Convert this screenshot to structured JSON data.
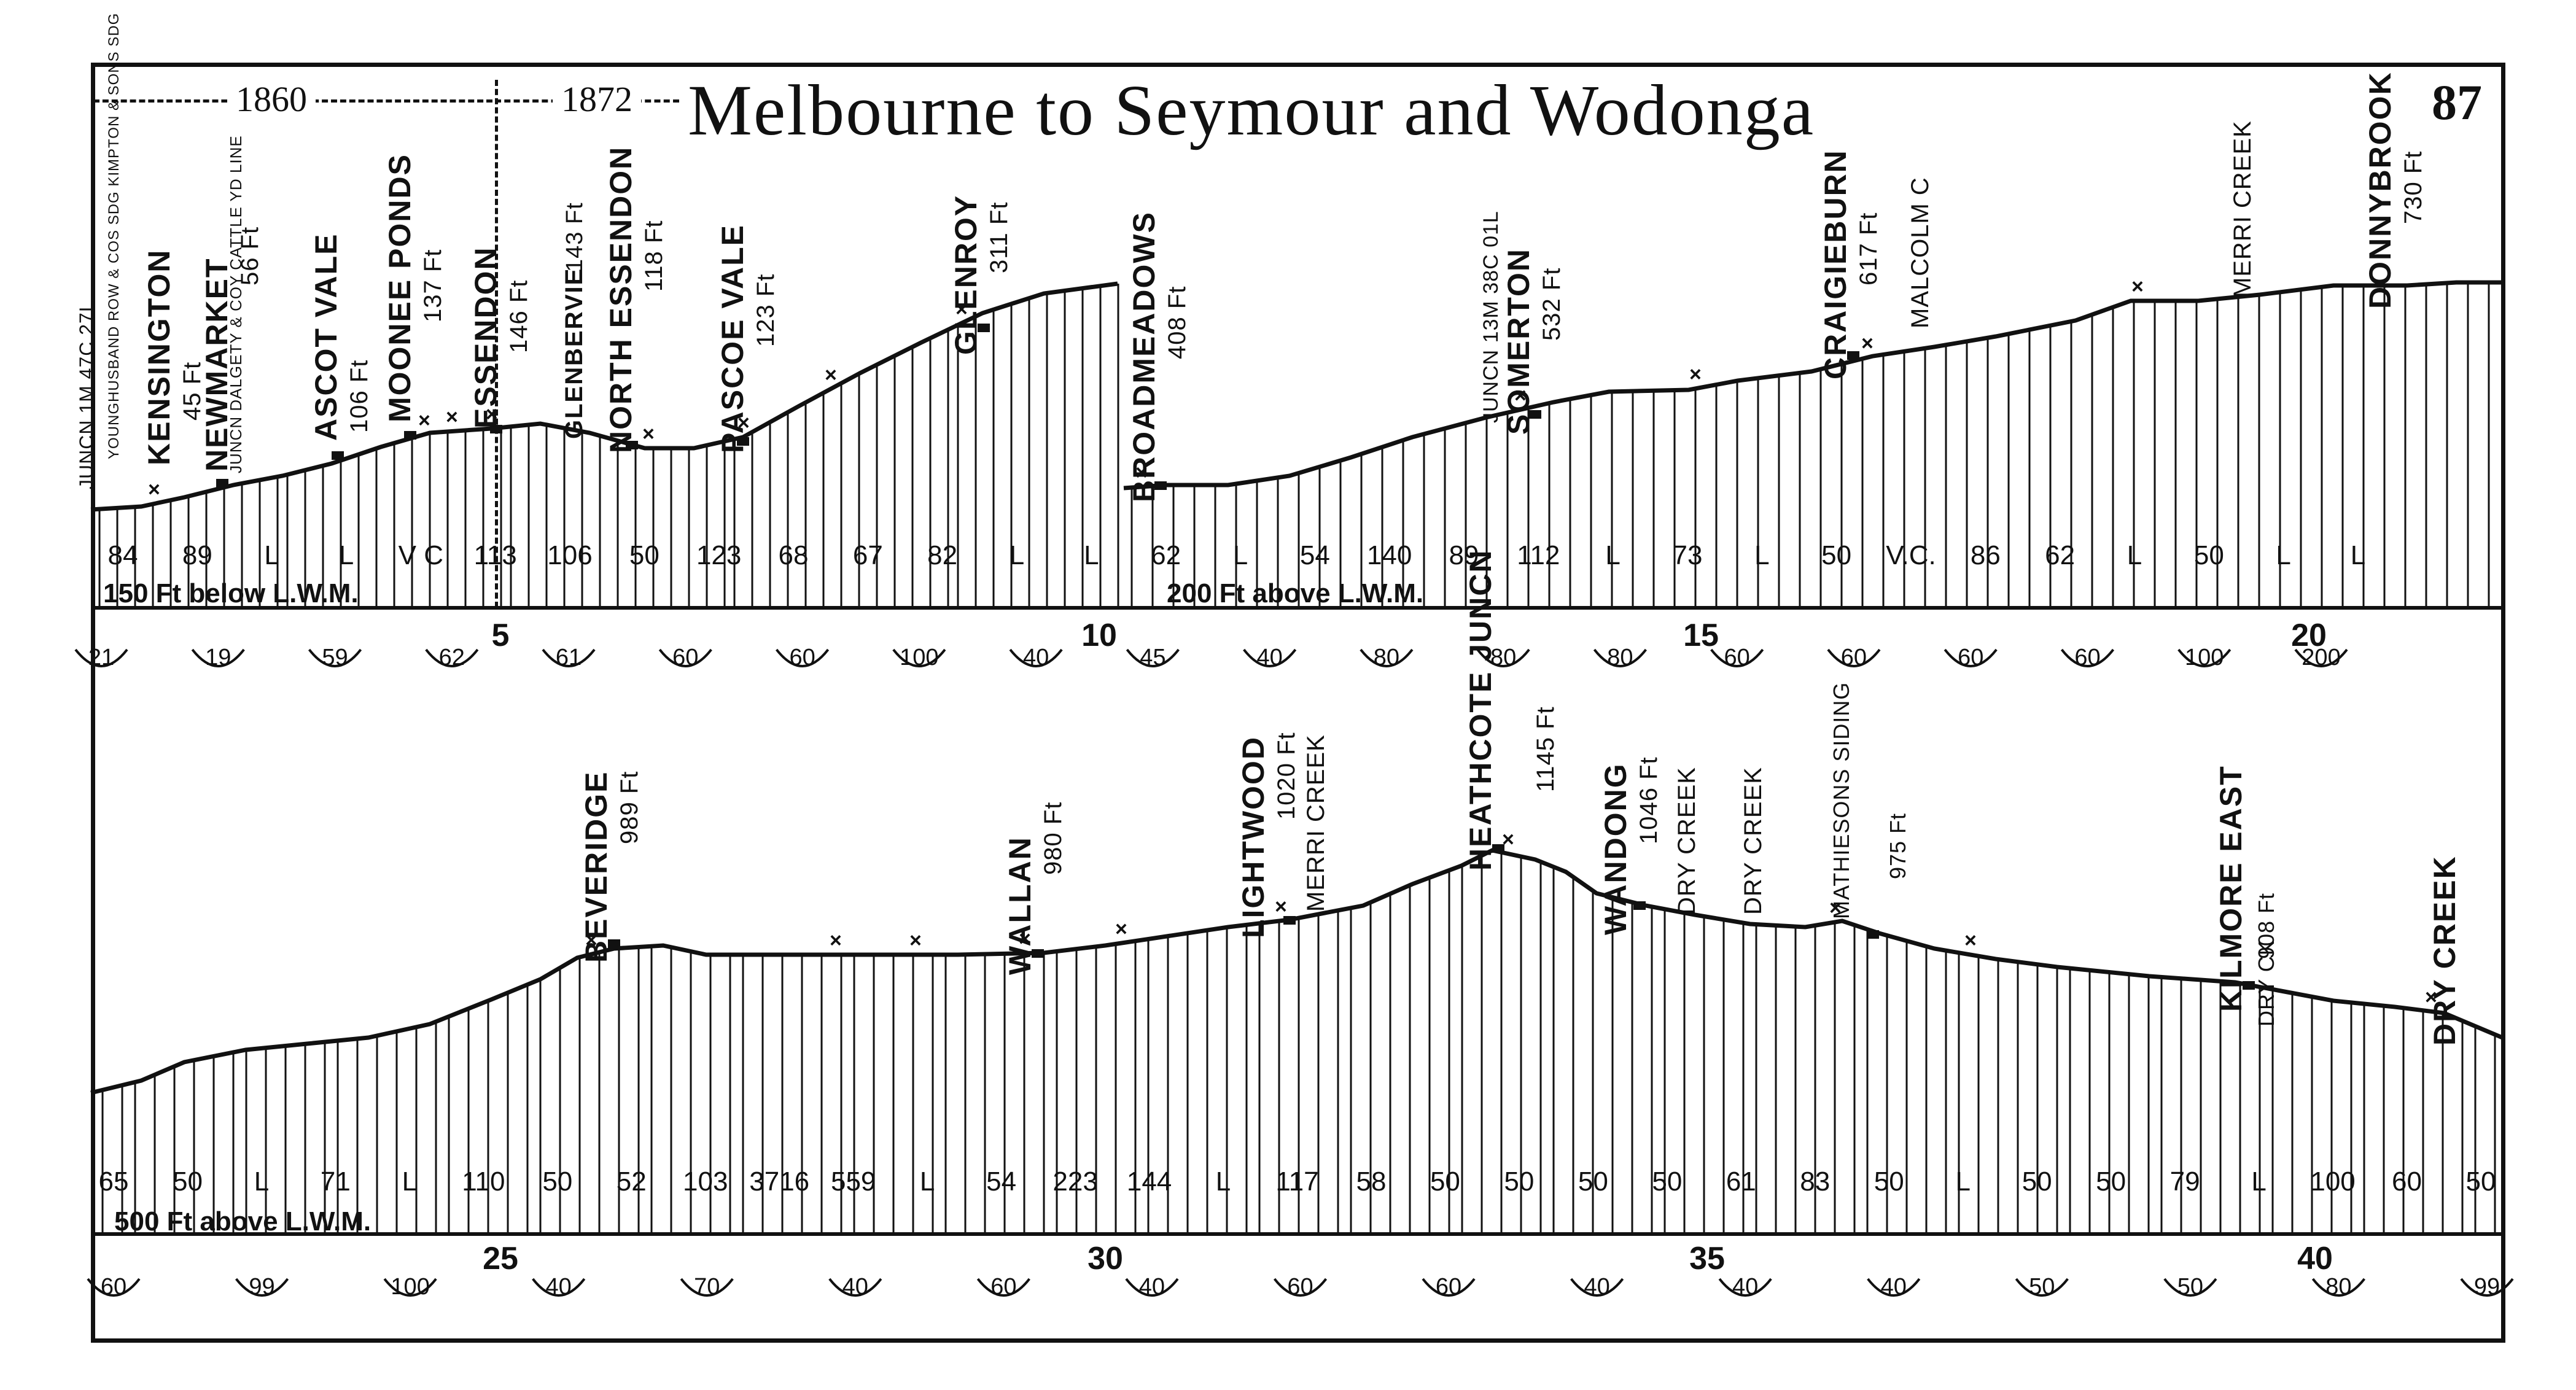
{
  "title": "Melbourne to Seymour and Wodonga",
  "page_number": "87",
  "eras": [
    "1860",
    "1872"
  ],
  "datum_labels": {
    "panel1_left": "150 Ft below L.W.M.",
    "panel1_right": "200 Ft above L.W.M.",
    "panel2": "500 Ft above L.W.M."
  },
  "panel1_stations": [
    {
      "name": "KENSINGTON",
      "elev": "45 Ft"
    },
    {
      "name": "NEWMARKET",
      "elev": "56 Ft"
    },
    {
      "name": "ASCOT VALE",
      "elev": "106 Ft"
    },
    {
      "name": "MOONEE PONDS",
      "elev": "137 Ft"
    },
    {
      "name": "ESSENDON",
      "elev": "146 Ft"
    },
    {
      "name": "GLENBERVIE",
      "elev": "143 Ft"
    },
    {
      "name": "NORTH ESSENDON",
      "elev": "118 Ft"
    },
    {
      "name": "PASCOE VALE",
      "elev": "123 Ft"
    },
    {
      "name": "GLENROY",
      "elev": "311 Ft"
    },
    {
      "name": "BROADMEADOWS",
      "elev": "408 Ft"
    },
    {
      "name": "SOMERTON",
      "elev": "532 Ft"
    },
    {
      "name": "CRAIGIEBURN",
      "elev": "617 Ft"
    },
    {
      "name": "MALCOLM C",
      "elev": ""
    },
    {
      "name": "MERRI CREEK",
      "elev": ""
    },
    {
      "name": "DONNYBROOK",
      "elev": "730 Ft"
    }
  ],
  "panel1_annotations": {
    "jun_left": "JUNCN 1M 47C 27L",
    "siding_left": "YOUNGHUSBAND ROW & COS SDG  KIMPTON & SONS SDG",
    "newmarket_jun": "JUNCN DALGETY & COY  CATTLE YD LINE",
    "somerton_jun": "JUNCN 13M 38C 01L"
  },
  "panel2_stations": [
    {
      "name": "BEVERIDGE",
      "elev": "989 Ft"
    },
    {
      "name": "WALLAN",
      "elev": "980 Ft"
    },
    {
      "name": "LIGHTWOOD",
      "elev": "1020 Ft"
    },
    {
      "name": "MERRI CREEK",
      "elev": ""
    },
    {
      "name": "HEATHCOTE JUNCN",
      "elev": "1145 Ft"
    },
    {
      "name": "WANDONG",
      "elev": "1046 Ft"
    },
    {
      "name": "DRY CREEK",
      "elev": ""
    },
    {
      "name": "DRY CREEK",
      "elev": ""
    },
    {
      "name": "MATHIESONS SIDING",
      "elev": "975 Ft"
    },
    {
      "name": "KILMORE EAST",
      "elev": "908 Ft"
    },
    {
      "name": "DRY CK",
      "elev": ""
    },
    {
      "name": "DRY CREEK",
      "elev": ""
    }
  ],
  "panel1_gradients": [
    "84",
    "89",
    "L",
    "L",
    "V C",
    "113",
    "106",
    "50",
    "123",
    "68",
    "67",
    "82",
    "L",
    "L",
    "62",
    "L",
    "54",
    "140",
    "89",
    "112",
    "L",
    "73",
    "L",
    "50",
    "V.C.",
    "86",
    "62",
    "L",
    "50",
    "L",
    "L"
  ],
  "panel2_gradients": [
    "65",
    "50",
    "L",
    "71",
    "L",
    "110",
    "50",
    "52",
    "103",
    "3716",
    "559",
    "L",
    "54",
    "223",
    "144",
    "L",
    "117",
    "58",
    "50",
    "50",
    "50",
    "50",
    "61",
    "83",
    "50",
    "L",
    "50",
    "50",
    "79",
    "L",
    "100",
    "60",
    "50"
  ],
  "panel1_mileposts": [
    "5",
    "10",
    "15",
    "20"
  ],
  "panel2_mileposts": [
    "25",
    "30",
    "35",
    "40"
  ],
  "panel1_curves": [
    "21",
    "19",
    "59",
    "62",
    "61",
    "60",
    "60",
    "100",
    "40",
    "45",
    "40",
    "80",
    "80",
    "80",
    "60",
    "60",
    "60",
    "60",
    "100",
    "200"
  ],
  "panel2_curves": [
    "60",
    "99",
    "100",
    "40",
    "70",
    "40",
    "60",
    "40",
    "60",
    "60",
    "40",
    "40",
    "40",
    "50",
    "50",
    "80",
    "99"
  ]
}
